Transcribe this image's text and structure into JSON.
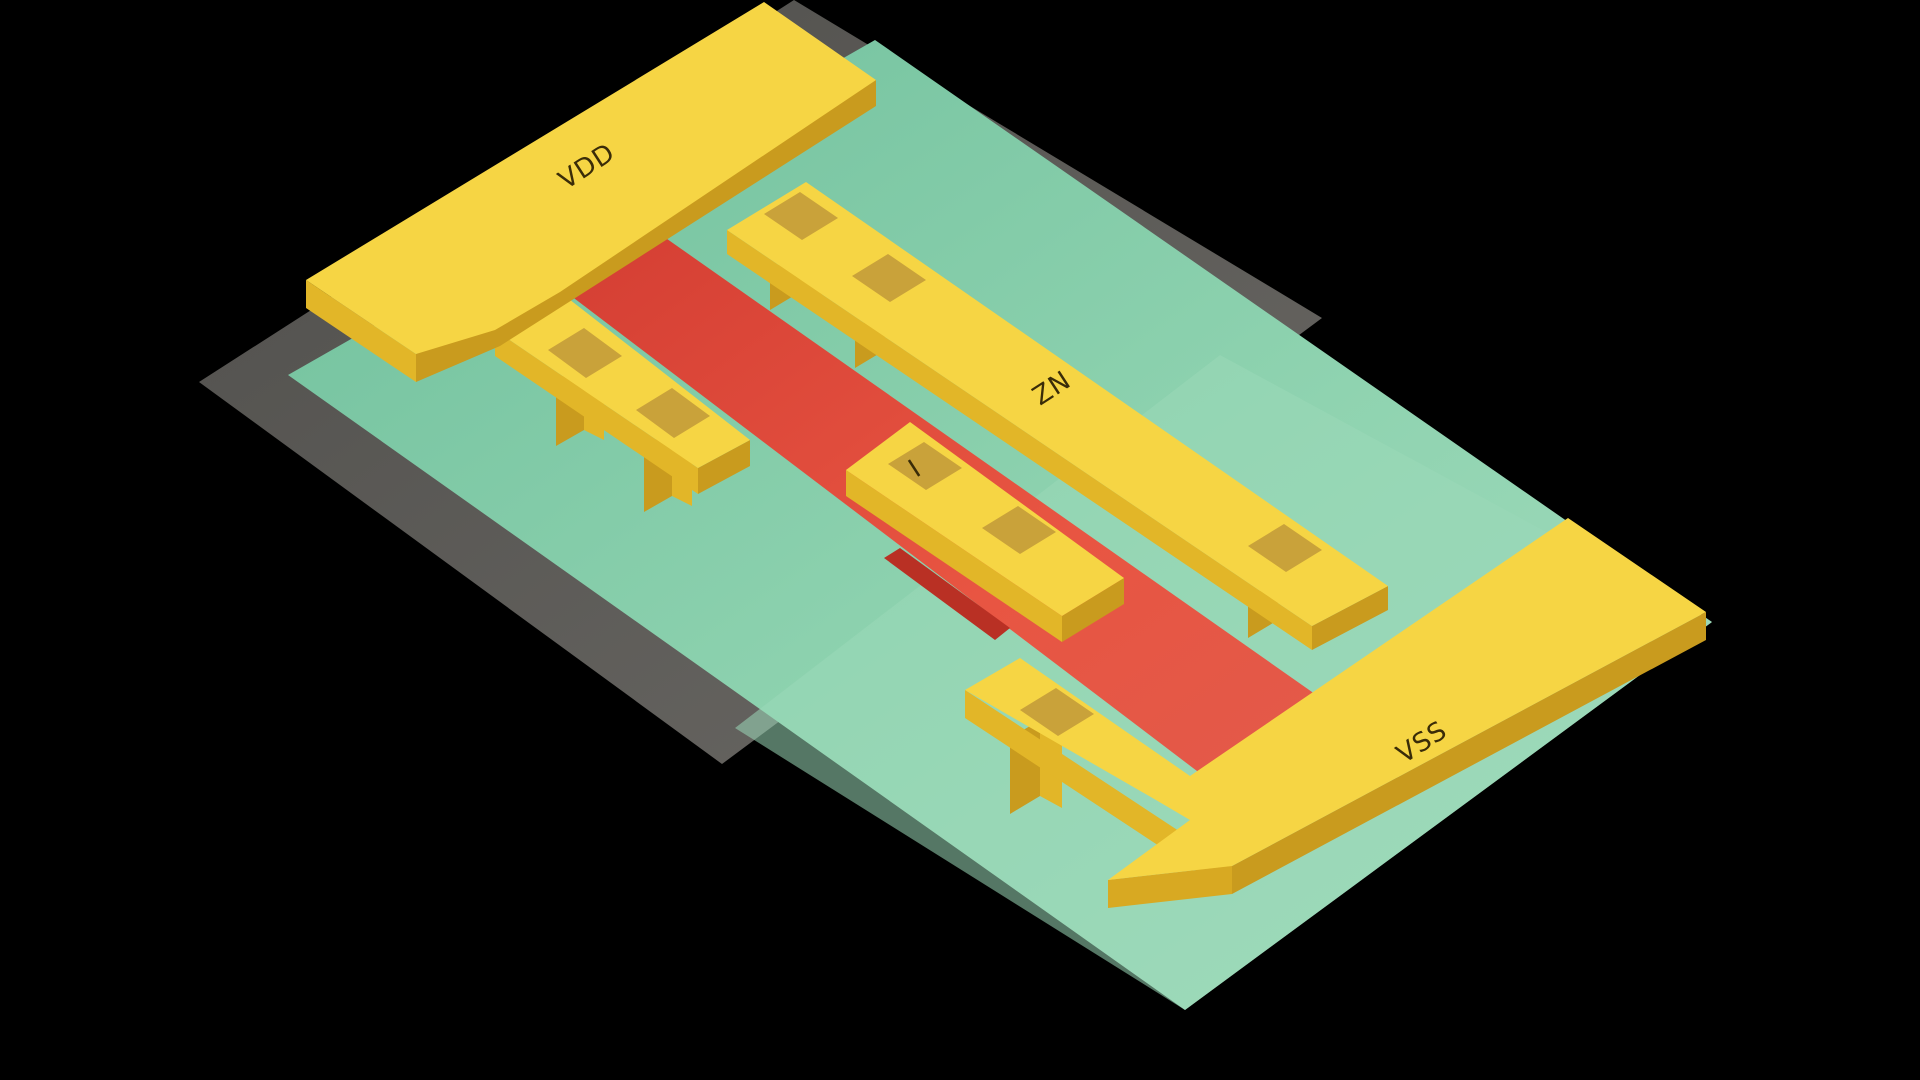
{
  "labels": {
    "vdd": "VDD",
    "zn": "ZN",
    "input": "I",
    "vss": "VSS"
  },
  "colors": {
    "background": "#000000",
    "nwell": "#5e5c58",
    "diffusion": "#8fd3b0",
    "poly": "#e35645",
    "metal_top": "#f6d544",
    "metal_side": "#e2b628",
    "metal_side_dark": "#c99b1e",
    "via": "#c9a23a",
    "label_text": "#3a2c08"
  }
}
